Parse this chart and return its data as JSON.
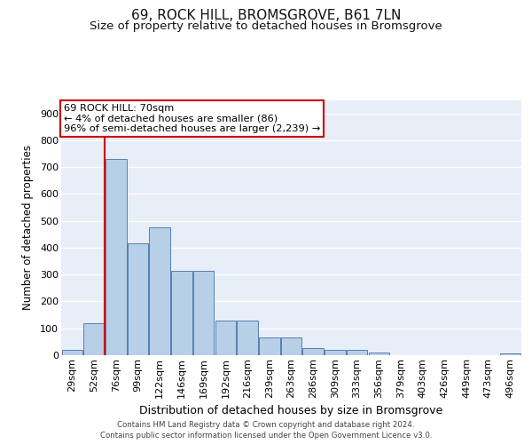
{
  "title": "69, ROCK HILL, BROMSGROVE, B61 7LN",
  "subtitle": "Size of property relative to detached houses in Bromsgrove",
  "xlabel": "Distribution of detached houses by size in Bromsgrove",
  "ylabel": "Number of detached properties",
  "categories": [
    "29sqm",
    "52sqm",
    "76sqm",
    "99sqm",
    "122sqm",
    "146sqm",
    "169sqm",
    "192sqm",
    "216sqm",
    "239sqm",
    "263sqm",
    "286sqm",
    "309sqm",
    "333sqm",
    "356sqm",
    "379sqm",
    "403sqm",
    "426sqm",
    "449sqm",
    "473sqm",
    "496sqm"
  ],
  "bar_values": [
    20,
    120,
    730,
    415,
    475,
    315,
    315,
    130,
    130,
    65,
    65,
    25,
    20,
    20,
    10,
    0,
    0,
    0,
    0,
    0,
    8
  ],
  "bar_color": "#b8cfe8",
  "bar_edge_color": "#5580b0",
  "vline_x_index": 2,
  "vline_color": "#cc0000",
  "annotation_text": "69 ROCK HILL: 70sqm\n← 4% of detached houses are smaller (86)\n96% of semi-detached houses are larger (2,239) →",
  "annotation_box_color": "#ffffff",
  "annotation_box_edge": "#cc0000",
  "ylim": [
    0,
    950
  ],
  "yticks": [
    0,
    100,
    200,
    300,
    400,
    500,
    600,
    700,
    800,
    900
  ],
  "axes_bg_color": "#e8eef8",
  "grid_color": "#ffffff",
  "footer": "Contains HM Land Registry data © Crown copyright and database right 2024.\nContains public sector information licensed under the Open Government Licence v3.0.",
  "title_fontsize": 11,
  "subtitle_fontsize": 9.5,
  "ylabel_fontsize": 8.5,
  "xlabel_fontsize": 9,
  "tick_fontsize": 8,
  "annot_fontsize": 8.2
}
